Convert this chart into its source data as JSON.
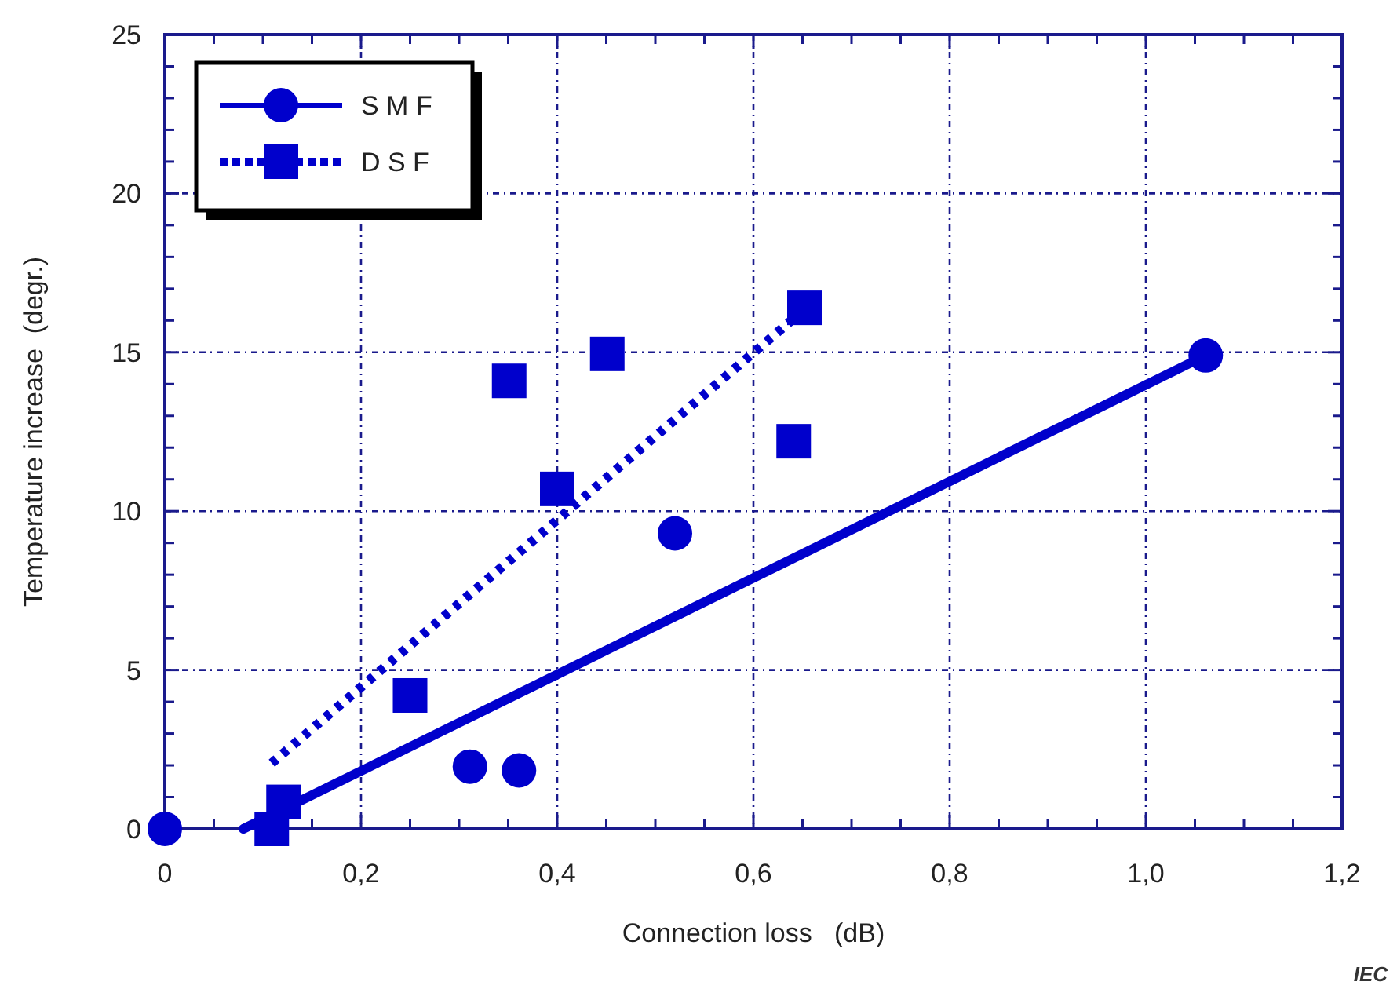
{
  "chart_data": {
    "type": "scatter",
    "xlabel": "Connection loss   (dB)",
    "ylabel": "Temperature increase  (degr.)",
    "annotations": [
      "IEC"
    ],
    "xlim": [
      0,
      1.2
    ],
    "ylim": [
      0,
      25
    ],
    "xticks": [
      0,
      {
        "value": 0.05,
        "label": null
      },
      {
        "value": 0.1,
        "label": null
      },
      {
        "value": 0.15,
        "label": null
      },
      {
        "value": 0.2,
        "label": "0,2"
      },
      {
        "value": 0.25,
        "label": null
      },
      {
        "value": 0.3,
        "label": null
      },
      {
        "value": 0.35,
        "label": null
      },
      {
        "value": 0.4,
        "label": "0,4"
      },
      {
        "value": 0.45,
        "label": null
      },
      {
        "value": 0.5,
        "label": null
      },
      {
        "value": 0.55,
        "label": null
      },
      {
        "value": 0.6,
        "label": "0,6"
      },
      {
        "value": 0.65,
        "label": null
      },
      {
        "value": 0.7,
        "label": null
      },
      {
        "value": 0.75,
        "label": null
      },
      {
        "value": 0.8,
        "label": "0,8"
      },
      {
        "value": 0.85,
        "label": null
      },
      {
        "value": 0.9,
        "label": null
      },
      {
        "value": 0.95,
        "label": null
      },
      {
        "value": 1.0,
        "label": "1,0"
      },
      {
        "value": 1.05,
        "label": null
      },
      {
        "value": 1.1,
        "label": null
      },
      {
        "value": 1.15,
        "label": null
      },
      {
        "value": 1.2,
        "label": "1,2"
      }
    ],
    "yticks": [
      0,
      {
        "value": 1,
        "label": null
      },
      {
        "value": 2,
        "label": null
      },
      {
        "value": 3,
        "label": null
      },
      {
        "value": 4,
        "label": null
      },
      5,
      {
        "value": 6,
        "label": null
      },
      {
        "value": 7,
        "label": null
      },
      {
        "value": 8,
        "label": null
      },
      {
        "value": 9,
        "label": null
      },
      10,
      {
        "value": 11,
        "label": null
      },
      {
        "value": 12,
        "label": null
      },
      {
        "value": 13,
        "label": null
      },
      {
        "value": 14,
        "label": null
      },
      15,
      {
        "value": 16,
        "label": null
      },
      {
        "value": 17,
        "label": null
      },
      {
        "value": 18,
        "label": null
      },
      {
        "value": 19,
        "label": null
      },
      20,
      {
        "value": 21,
        "label": null
      },
      {
        "value": 22,
        "label": null
      },
      {
        "value": 23,
        "label": null
      },
      {
        "value": 24,
        "label": null
      },
      25
    ],
    "grid": true,
    "legend": "top left",
    "series": [
      {
        "name": "S M F",
        "marker": "circle",
        "color": "#0000cc",
        "x": [
          0,
          0.311,
          0.361,
          0.52,
          1.061
        ],
        "values": [
          0,
          1.96,
          1.84,
          9.3,
          14.9
        ]
      },
      {
        "type": "line",
        "line_style": "solid",
        "color": "#0000cc",
        "x": [
          0.08,
          1.061
        ],
        "values": [
          0,
          14.9
        ]
      },
      {
        "name": "D S F",
        "marker": "square",
        "color": "#0000cc",
        "x": [
          0.109,
          0.121,
          0.25,
          0.351,
          0.4,
          0.451,
          0.641,
          0.652
        ],
        "values": [
          0,
          0.85,
          4.2,
          14.1,
          10.7,
          14.95,
          12.2,
          16.4
        ]
      },
      {
        "type": "line",
        "line_style": "dotted",
        "color": "#0000cc",
        "x": [
          0.109,
          0.65
        ],
        "values": [
          2.07,
          16.3
        ]
      }
    ]
  }
}
